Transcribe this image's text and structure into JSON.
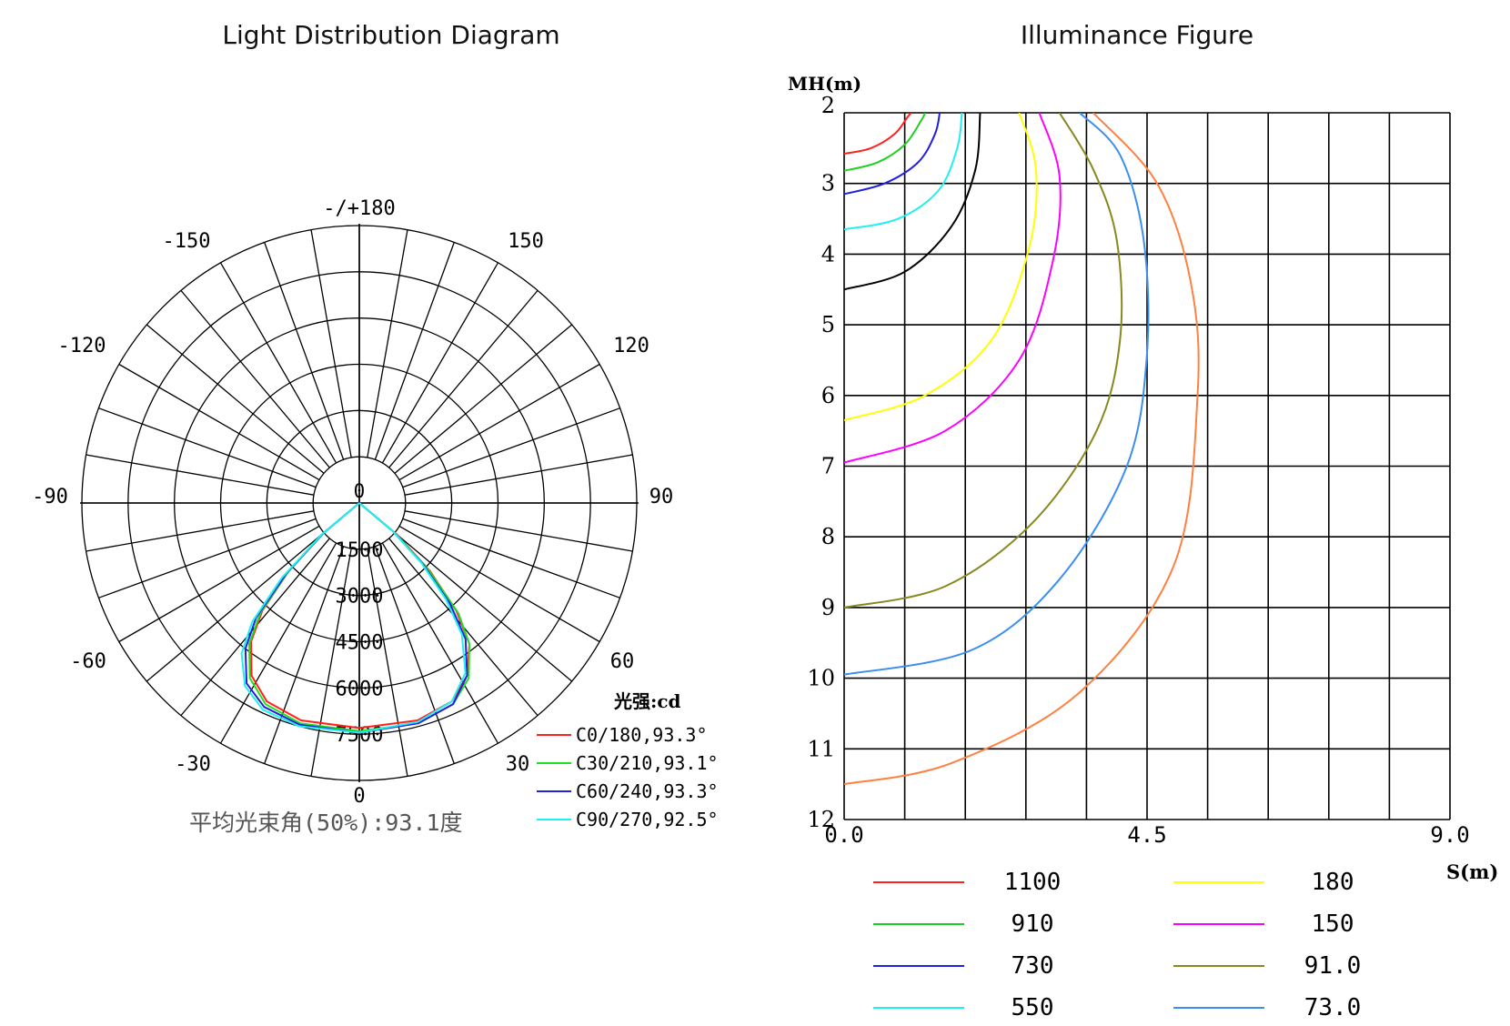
{
  "titles": {
    "left": "Light Distribution Diagram",
    "right": "Illuminance Figure"
  },
  "chart_data": [
    {
      "type": "polar",
      "title": "Light Distribution Diagram",
      "angle_labels": {
        "top": "-/+180",
        "left_upper": [
          "-150",
          "-120"
        ],
        "right_upper": [
          "150",
          "120"
        ],
        "horizontal": [
          "-90",
          "90"
        ],
        "left_lower": [
          "-60",
          "-30"
        ],
        "right_lower": [
          "60",
          "30"
        ],
        "center": "0",
        "bottom": "0"
      },
      "radial_ticks": [
        "1500",
        "3000",
        "4500",
        "6000",
        "7500"
      ],
      "rmax": 9000,
      "unit_label": "光强:cd",
      "beam_note": "平均光束角(50%):93.1度",
      "grid": true,
      "series": [
        {
          "name": "C0/180,93.3°",
          "color": "#ff2020",
          "angles": [
            -50,
            -46,
            -42,
            -38,
            -32,
            -25,
            -15,
            0,
            15,
            25,
            32,
            38,
            42,
            46,
            50
          ],
          "values": [
            1600,
            3200,
            4700,
            5700,
            6600,
            7100,
            7300,
            7300,
            7300,
            7100,
            6600,
            5800,
            4700,
            3200,
            1600
          ]
        },
        {
          "name": "C30/210,93.1°",
          "color": "#20e020",
          "angles": [
            -50,
            -46,
            -42,
            -38,
            -32,
            -25,
            -15,
            0,
            15,
            25,
            32,
            38,
            42,
            46,
            50
          ],
          "values": [
            1500,
            3200,
            4800,
            5800,
            6700,
            7200,
            7400,
            7400,
            7400,
            7200,
            6700,
            5800,
            4800,
            3100,
            1500
          ]
        },
        {
          "name": "C60/240,93.3°",
          "color": "#2020e0",
          "angles": [
            -50,
            -46,
            -42,
            -38,
            -32,
            -25,
            -15,
            0,
            15,
            25,
            32,
            38,
            42,
            46,
            50
          ],
          "values": [
            1500,
            3300,
            5000,
            6000,
            6900,
            7300,
            7450,
            7450,
            7400,
            7200,
            6600,
            5600,
            4400,
            2900,
            1400
          ]
        },
        {
          "name": "C90/270,92.5°",
          "color": "#20f0f0",
          "angles": [
            -50,
            -46,
            -42,
            -38,
            -32,
            -25,
            -15,
            0,
            15,
            25,
            32,
            38,
            42,
            46,
            50
          ],
          "values": [
            1600,
            3500,
            5200,
            6200,
            7000,
            7400,
            7500,
            7450,
            7350,
            7100,
            6500,
            5400,
            4200,
            2800,
            1400
          ]
        }
      ]
    },
    {
      "type": "line",
      "title": "Illuminance Figure",
      "xlabel": "S(m)",
      "ylabel": "MH(m)",
      "xlim": [
        0,
        9
      ],
      "ylim": [
        2,
        12
      ],
      "x_tick_labels": [
        "0.0",
        "4.5",
        "9.0"
      ],
      "y_tick_labels": [
        "2",
        "3",
        "4",
        "5",
        "6",
        "7",
        "8",
        "9",
        "10",
        "11",
        "12"
      ],
      "grid": true,
      "series": [
        {
          "name": "1100",
          "color": "#ff2020",
          "x": [
            0,
            0.4,
            0.75,
            0.95,
            1.0
          ],
          "y": [
            2.58,
            2.5,
            2.3,
            2.05,
            2.0
          ]
        },
        {
          "name": "910",
          "color": "#20d020",
          "x": [
            0,
            0.5,
            0.9,
            1.15,
            1.2
          ],
          "y": [
            2.82,
            2.7,
            2.45,
            2.1,
            2.0
          ]
        },
        {
          "name": "730",
          "color": "#2020e0",
          "x": [
            0,
            0.6,
            1.1,
            1.35,
            1.42
          ],
          "y": [
            3.15,
            3.0,
            2.7,
            2.3,
            2.0
          ]
        },
        {
          "name": "550",
          "color": "#20f0f0",
          "x": [
            0,
            0.8,
            1.4,
            1.68,
            1.75
          ],
          "y": [
            3.65,
            3.5,
            3.1,
            2.5,
            2.0
          ]
        },
        {
          "name": "",
          "color": "#000000",
          "x": [
            0,
            0.9,
            1.6,
            1.95,
            2.02
          ],
          "y": [
            4.5,
            4.25,
            3.6,
            2.8,
            2.0
          ]
        },
        {
          "name": "180",
          "color": "#ffff00",
          "x": [
            0,
            1.2,
            2.2,
            2.75,
            2.85,
            2.6
          ],
          "y": [
            6.35,
            6.0,
            5.2,
            3.9,
            2.8,
            2.0
          ]
        },
        {
          "name": "150",
          "color": "#ff00ff",
          "x": [
            0,
            1.5,
            2.6,
            3.1,
            3.2,
            2.9
          ],
          "y": [
            6.95,
            6.5,
            5.5,
            4.1,
            2.9,
            2.0
          ]
        },
        {
          "name": "91.0",
          "color": "#888820",
          "x": [
            0,
            1.5,
            2.8,
            3.75,
            4.1,
            4.05,
            3.7,
            3.2
          ],
          "y": [
            9.0,
            8.7,
            7.8,
            6.5,
            5.2,
            3.8,
            2.8,
            2.0
          ]
        },
        {
          "name": "73.0",
          "color": "#3a8ef0",
          "x": [
            0,
            1.9,
            3.2,
            4.2,
            4.5,
            4.45,
            4.1,
            3.5
          ],
          "y": [
            9.95,
            9.6,
            8.6,
            7.0,
            5.4,
            3.8,
            2.6,
            2.0
          ]
        },
        {
          "name": "",
          "color": "#ff8040",
          "x": [
            0,
            1.6,
            3.5,
            4.9,
            5.25,
            5.15,
            4.65,
            3.7
          ],
          "y": [
            11.5,
            11.2,
            10.2,
            8.4,
            6.0,
            4.4,
            3.0,
            2.0
          ]
        }
      ]
    }
  ]
}
